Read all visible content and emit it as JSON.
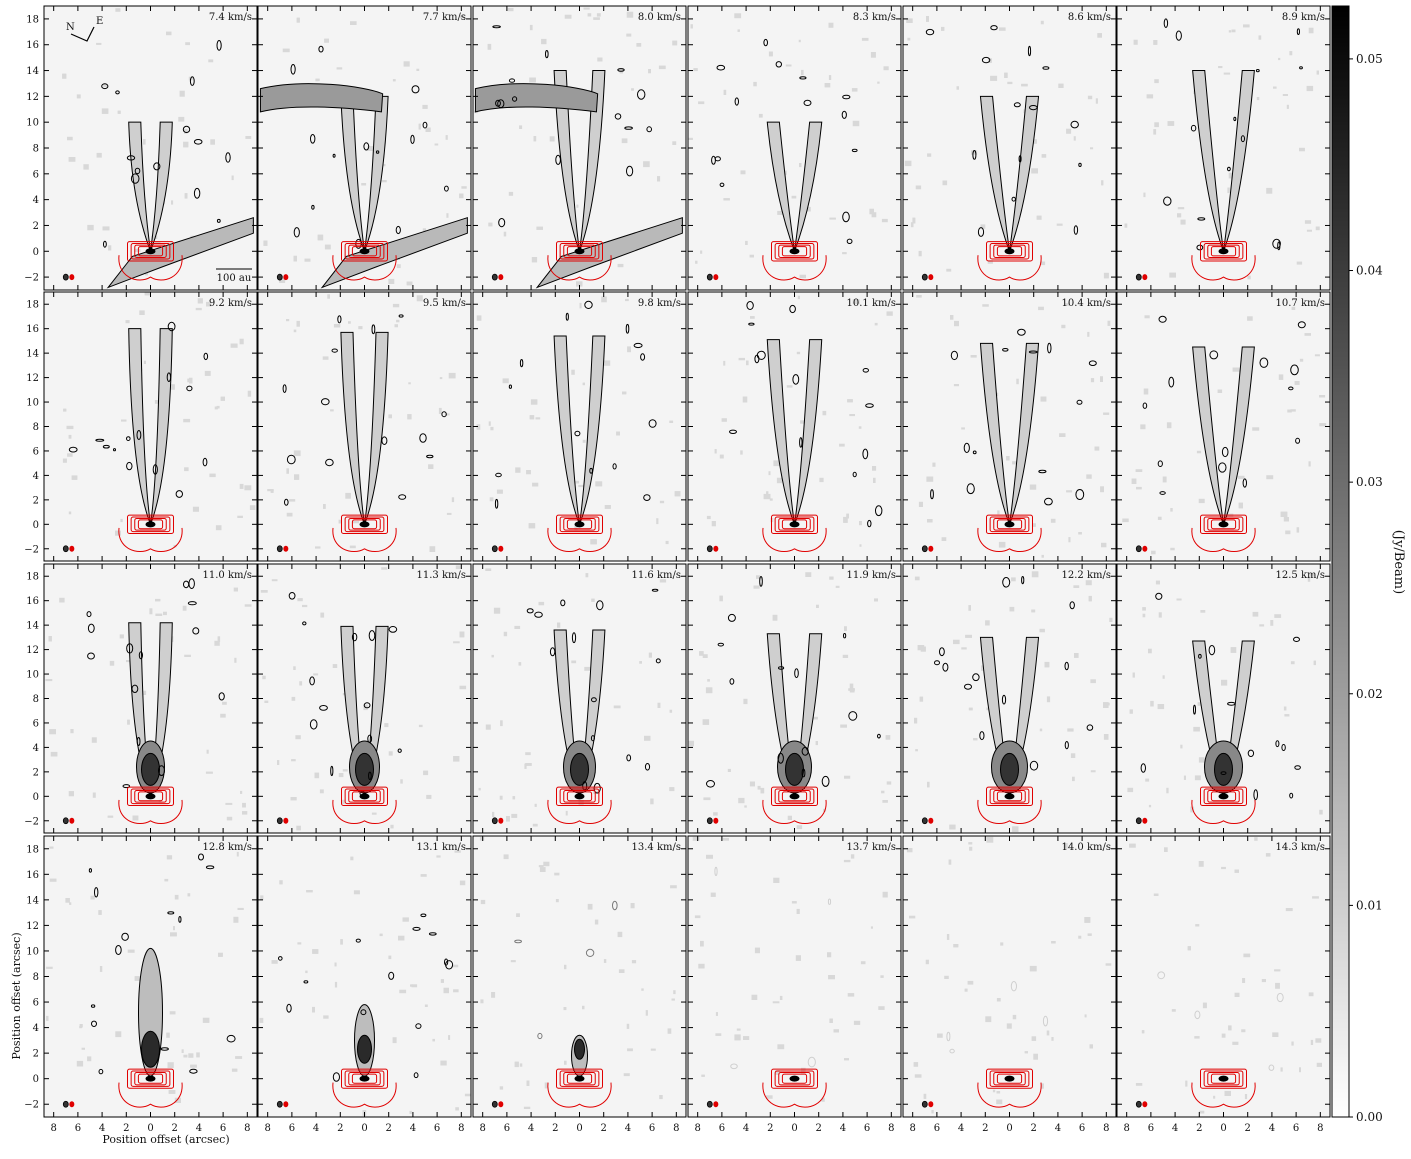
{
  "chart_data": {
    "type": "heatmap",
    "description_free": true,
    "grid": {
      "rows": 4,
      "cols": 6
    },
    "panels": [
      {
        "velocity": "7.4 km/s"
      },
      {
        "velocity": "7.7 km/s"
      },
      {
        "velocity": "8.0 km/s"
      },
      {
        "velocity": "8.3 km/s"
      },
      {
        "velocity": "8.6 km/s"
      },
      {
        "velocity": "8.9 km/s"
      },
      {
        "velocity": "9.2 km/s"
      },
      {
        "velocity": "9.5 km/s"
      },
      {
        "velocity": "9.8 km/s"
      },
      {
        "velocity": "10.1 km/s"
      },
      {
        "velocity": "10.4 km/s"
      },
      {
        "velocity": "10.7 km/s"
      },
      {
        "velocity": "11.0 km/s"
      },
      {
        "velocity": "11.3 km/s"
      },
      {
        "velocity": "11.6 km/s"
      },
      {
        "velocity": "11.9 km/s"
      },
      {
        "velocity": "12.2 km/s"
      },
      {
        "velocity": "12.5 km/s"
      },
      {
        "velocity": "12.8 km/s"
      },
      {
        "velocity": "13.1 km/s"
      },
      {
        "velocity": "13.4 km/s"
      },
      {
        "velocity": "13.7 km/s"
      },
      {
        "velocity": "14.0 km/s"
      },
      {
        "velocity": "14.3 km/s"
      }
    ],
    "xlabel": "Position offset (arcsec)",
    "ylabel": "Position offset (arcsec)",
    "x_ticks": [
      "8",
      "6",
      "4",
      "2",
      "0",
      "2",
      "4",
      "6",
      "8"
    ],
    "x_tick_values": [
      8,
      6,
      4,
      2,
      0,
      -2,
      -4,
      -6,
      -8
    ],
    "y_ticks": [
      "18",
      "16",
      "14",
      "12",
      "10",
      "8",
      "6",
      "4",
      "2",
      "0",
      "−2"
    ],
    "y_tick_values": [
      18,
      16,
      14,
      12,
      10,
      8,
      6,
      4,
      2,
      0,
      -2
    ],
    "xlim": [
      8.8,
      -8.8
    ],
    "ylim": [
      -3.0,
      19.0
    ],
    "colorbar": {
      "label": "(Jy/Beam)",
      "ticks": [
        "0.00",
        "0.01",
        "0.02",
        "0.03",
        "0.04",
        "0.05"
      ],
      "tick_values": [
        0.0,
        0.01,
        0.02,
        0.03,
        0.04,
        0.05
      ],
      "range": [
        0.0,
        0.0525
      ],
      "colormap": "gray_r"
    },
    "annotations": {
      "compass_north": "N",
      "compass_east": "E",
      "scale_bar": "100 au"
    },
    "colors": {
      "contour_black": "#000000",
      "contour_red": "#e00000",
      "emission_fill": "#808080"
    }
  }
}
